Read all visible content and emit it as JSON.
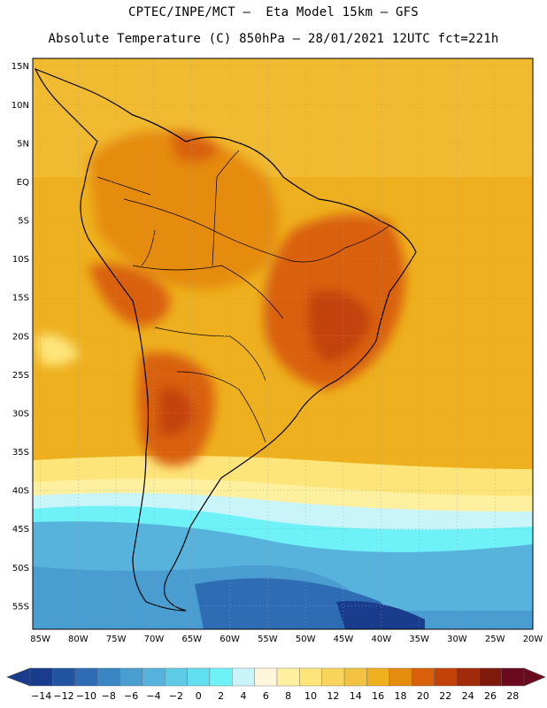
{
  "header": {
    "line1": "CPTEC/INPE/MCT –  Eta Model 15km – GFS",
    "line2": "Absolute Temperature (C) 850hPa – 28/01/2021 12UTC fct=221h"
  },
  "map": {
    "lat_labels": [
      "15N",
      "10N",
      "5N",
      "EQ",
      "5S",
      "10S",
      "15S",
      "20S",
      "25S",
      "30S",
      "35S",
      "40S",
      "45S",
      "50S",
      "55S"
    ],
    "lon_labels": [
      "85W",
      "80W",
      "75W",
      "70W",
      "65W",
      "60W",
      "55W",
      "50W",
      "45W",
      "40W",
      "35W",
      "30W",
      "25W",
      "20W"
    ],
    "lat_range": [
      -58,
      16
    ],
    "lon_range": [
      -86,
      -20
    ],
    "grid": true
  },
  "colorbar": {
    "labels": [
      "-14",
      "-12",
      "-10",
      "-8",
      "-6",
      "-4",
      "-2",
      "0",
      "2",
      "4",
      "6",
      "8",
      "10",
      "12",
      "14",
      "16",
      "18",
      "20",
      "22",
      "24",
      "26",
      "28"
    ],
    "colors": [
      "#1a3c8c",
      "#2354a0",
      "#2e6db4",
      "#3a85c4",
      "#4a9dd0",
      "#58b3dc",
      "#5ecbe6",
      "#62dfee",
      "#6ef2f8",
      "#c9f4fa",
      "#fff6dc",
      "#fff0a0",
      "#fde57a",
      "#f8d55a",
      "#f2c242",
      "#eeb01e",
      "#e58b0e",
      "#d9600a",
      "#c34209",
      "#a12a0a",
      "#7e1a0c",
      "#6a0a1e"
    ]
  }
}
